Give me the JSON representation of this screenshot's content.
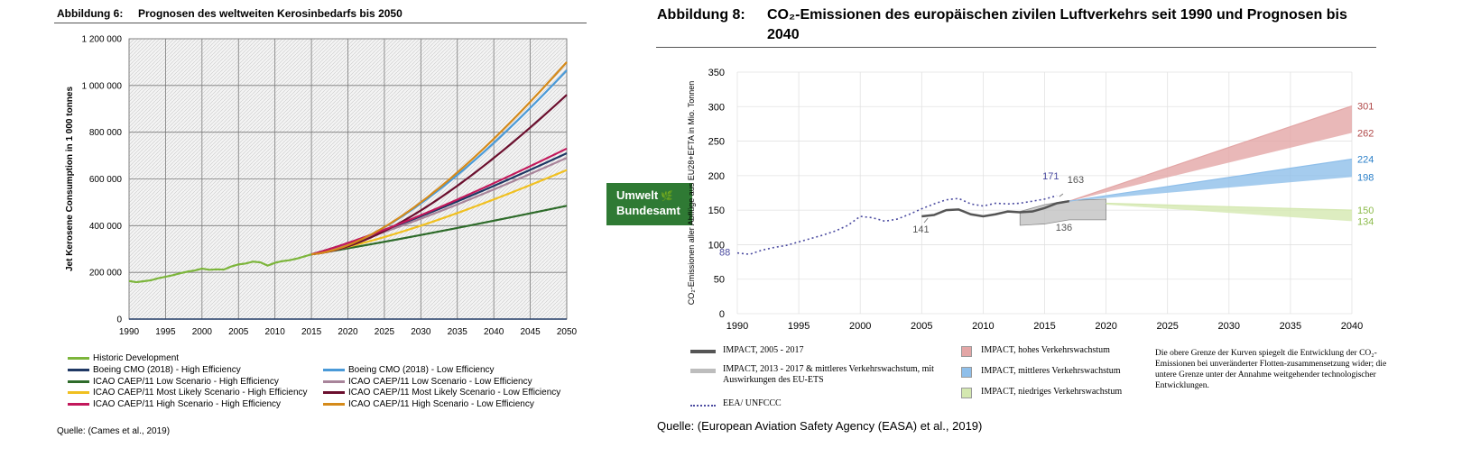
{
  "left_figure": {
    "number": "Abbildung 6:",
    "title": "Prognosen des weltweiten Kerosinbedarfs bis 2050",
    "source": "Quelle: (Cames et al., 2019)"
  },
  "right_figure": {
    "number": "Abbildung 8:",
    "title_line1": "CO₂-Emissionen des europäischen zivilen Luftverkehrs seit 1990 und Prognosen bis",
    "title_line2": "2040",
    "source": "Quelle: (European Aviation Safety Agency (EASA) et al., 2019)",
    "note": "Die obere Grenze der Kurven spiegelt die Entwicklung der CO₂-Emissionen bei unveränderter Flotten-zusammensetzung wider; die untere Grenze unter der Annahme weitgehender technologischer Entwicklungen."
  },
  "logo": {
    "line1": "Umwelt",
    "line2": "Bundesamt",
    "icon": "leaf-icon"
  },
  "chart_data": [
    {
      "type": "line",
      "ylabel": "Jet Kerosene Consumption in 1 000 tonnes",
      "xlim": [
        1990,
        2050
      ],
      "ylim": [
        0,
        1200000
      ],
      "xticks": [
        "1990",
        "1995",
        "2000",
        "2005",
        "2010",
        "2015",
        "2020",
        "2025",
        "2030",
        "2035",
        "2040",
        "2045",
        "2050"
      ],
      "yticks": [
        "0",
        "200 000",
        "400 000",
        "600 000",
        "800 000",
        "1 000 000",
        "1 200 000"
      ],
      "grid": true,
      "legend_position": "bottom",
      "series": [
        {
          "name": "Historic Development",
          "color": "#7cb53b",
          "x": [
            1990,
            1991,
            1992,
            1993,
            1994,
            1995,
            1996,
            1997,
            1998,
            1999,
            2000,
            2001,
            2002,
            2003,
            2004,
            2005,
            2006,
            2007,
            2008,
            2009,
            2010,
            2011,
            2012,
            2013,
            2014,
            2015
          ],
          "y": [
            163000,
            158000,
            162000,
            166000,
            175000,
            181000,
            188000,
            196000,
            203000,
            208000,
            216000,
            211000,
            213000,
            212000,
            225000,
            234000,
            238000,
            246000,
            243000,
            229000,
            241000,
            248000,
            252000,
            259000,
            268000,
            277000
          ]
        },
        {
          "name": "Boeing CMO (2018) - High Efficiency",
          "color": "#1f3864",
          "x": [
            2015,
            2030,
            2050
          ],
          "y": [
            277000,
            440000,
            710000
          ]
        },
        {
          "name": "Boeing CMO (2018) - Low Efficiency",
          "color": "#4a9ad8",
          "x": [
            2015,
            2030,
            2050
          ],
          "y": [
            277000,
            495000,
            1065000
          ]
        },
        {
          "name": "ICAO CAEP/11 Low Scenario - High Efficiency",
          "color": "#2e6b2a",
          "x": [
            2015,
            2030,
            2050
          ],
          "y": [
            277000,
            360000,
            485000
          ]
        },
        {
          "name": "ICAO CAEP/11 Low Scenario - Low Efficiency",
          "color": "#a8849a",
          "x": [
            2015,
            2030,
            2050
          ],
          "y": [
            277000,
            430000,
            690000
          ]
        },
        {
          "name": "ICAO CAEP/11 Most Likely Scenario - High Efficiency",
          "color": "#f0c020",
          "x": [
            2015,
            2030,
            2050
          ],
          "y": [
            277000,
            400000,
            638000
          ]
        },
        {
          "name": "ICAO CAEP/11 Most Likely Scenario - Low Efficiency",
          "color": "#6b0f2e",
          "x": [
            2015,
            2030,
            2050
          ],
          "y": [
            277000,
            465000,
            960000
          ]
        },
        {
          "name": "ICAO CAEP/11 High Scenario - High Efficiency",
          "color": "#c2185b",
          "x": [
            2015,
            2030,
            2050
          ],
          "y": [
            277000,
            445000,
            730000
          ]
        },
        {
          "name": "ICAO CAEP/11 High Scenario - Low Efficiency",
          "color": "#d58a1a",
          "x": [
            2015,
            2030,
            2050
          ],
          "y": [
            277000,
            500000,
            1100000
          ]
        }
      ]
    },
    {
      "type": "line",
      "ylabel": "CO₂-Emissionen aller Abflüge aus EU28+EFTA in Mio. Tonnen",
      "xlim": [
        1990,
        2040
      ],
      "ylim": [
        0,
        350
      ],
      "xticks": [
        "1990",
        "1995",
        "2000",
        "2005",
        "2010",
        "2015",
        "2020",
        "2025",
        "2030",
        "2035",
        "2040"
      ],
      "yticks": [
        "0",
        "50",
        "100",
        "150",
        "200",
        "250",
        "300",
        "350"
      ],
      "grid": true,
      "legend_position": "bottom",
      "series": [
        {
          "name": "EEA/ UNFCCC",
          "color": "#4b4ba0",
          "style": "dotted",
          "x": [
            1990,
            1991,
            1992,
            1993,
            1994,
            1995,
            1996,
            1997,
            1998,
            1999,
            2000,
            2001,
            2002,
            2003,
            2004,
            2005,
            2006,
            2007,
            2008,
            2009,
            2010,
            2011,
            2012,
            2013,
            2014,
            2015,
            2016
          ],
          "y": [
            88,
            86,
            92,
            96,
            99,
            104,
            109,
            114,
            120,
            128,
            141,
            139,
            134,
            137,
            144,
            152,
            159,
            165,
            167,
            159,
            156,
            160,
            159,
            160,
            163,
            166,
            171
          ]
        },
        {
          "name": "IMPACT, 2005 - 2017",
          "color": "#555555",
          "x": [
            2005,
            2006,
            2007,
            2008,
            2009,
            2010,
            2011,
            2012,
            2013,
            2014,
            2015,
            2016,
            2017
          ],
          "y": [
            141,
            143,
            150,
            151,
            144,
            141,
            144,
            148,
            147,
            148,
            153,
            160,
            163
          ]
        },
        {
          "name": "IMPACT, 2013 - 2017 & mittleres Verkehrswachstum, mit Auswirkungen des EU-ETS",
          "color": "#bdbdbd",
          "x": [
            2013,
            2015,
            2017,
            2020
          ],
          "upper": [
            148,
            158,
            164,
            166
          ],
          "lower": [
            128,
            130,
            136,
            136
          ]
        },
        {
          "name": "IMPACT, hohes Verkehrswachstum",
          "color": "#e3a6a6",
          "x": [
            2017,
            2040
          ],
          "upper": [
            163,
            301
          ],
          "lower": [
            163,
            262
          ]
        },
        {
          "name": "IMPACT, mittleres Verkehrswachstum",
          "color": "#8fbfea",
          "x": [
            2017,
            2040
          ],
          "upper": [
            163,
            224
          ],
          "lower": [
            163,
            198
          ]
        },
        {
          "name": "IMPACT, niedriges Verkehrswachstum",
          "color": "#d4e8b0",
          "x": [
            2020,
            2040
          ],
          "upper": [
            160,
            150
          ],
          "lower": [
            158,
            134
          ]
        }
      ],
      "annotations": [
        "88",
        "171",
        "163",
        "141",
        "136",
        "301",
        "262",
        "224",
        "198",
        "150",
        "134"
      ],
      "source_label": "EEA/ UNFCCC"
    }
  ]
}
